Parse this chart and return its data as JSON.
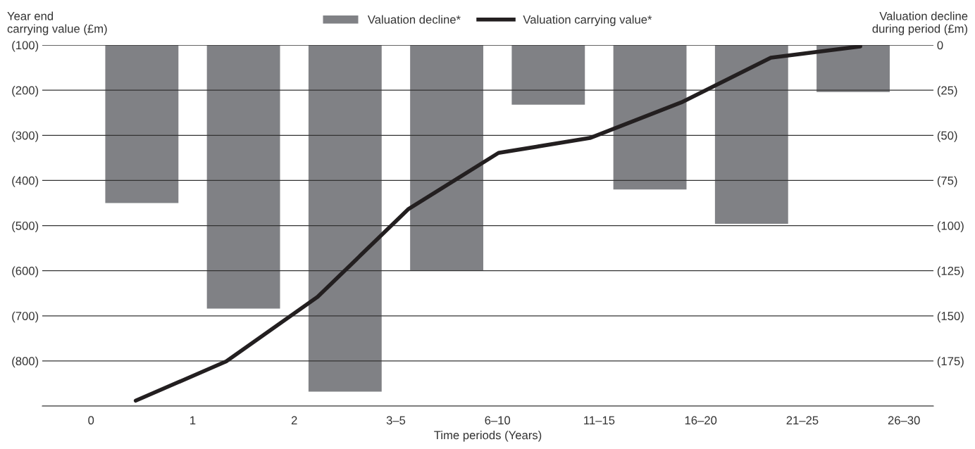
{
  "chart_data": {
    "type": "bar",
    "xlabel": "Time periods (Years)",
    "ylabel": "Year end\ncarrying value (£m)",
    "y2label": "Valuation decline\nduring period (£m)",
    "xlim": [
      -0.48,
      8.29
    ],
    "xticks": [
      {
        "value": 0,
        "label": "0"
      },
      {
        "value": 1,
        "label": "1"
      },
      {
        "value": 2,
        "label": "2"
      },
      {
        "value": 3,
        "label": "3–5"
      },
      {
        "value": 4,
        "label": "6–10"
      },
      {
        "value": 5,
        "label": "11–15"
      },
      {
        "value": 6,
        "label": "16–20"
      },
      {
        "value": 7,
        "label": "21–25"
      },
      {
        "value": 8,
        "label": "26–30"
      }
    ],
    "ylim": [
      -900,
      -100
    ],
    "yticks": [
      {
        "value": -100,
        "label": "(100)"
      },
      {
        "value": -200,
        "label": "(200)"
      },
      {
        "value": -300,
        "label": "(300)"
      },
      {
        "value": -400,
        "label": "(400)"
      },
      {
        "value": -500,
        "label": "(500)"
      },
      {
        "value": -600,
        "label": "(600)"
      },
      {
        "value": -700,
        "label": "(700)"
      },
      {
        "value": -800,
        "label": "(800)"
      },
      {
        "value": -900,
        "label": null
      }
    ],
    "y2lim": [
      -200,
      0
    ],
    "y2ticks": [
      {
        "value": 0,
        "label": "0"
      },
      {
        "value": -25,
        "label": "(25)"
      },
      {
        "value": -50,
        "label": "(50)"
      },
      {
        "value": -75,
        "label": "(75)"
      },
      {
        "value": -100,
        "label": "(100)"
      },
      {
        "value": -125,
        "label": "(125)"
      },
      {
        "value": -150,
        "label": "(150)"
      },
      {
        "value": -175,
        "label": "(175)"
      },
      {
        "value": -200,
        "label": null
      }
    ],
    "grid": "y",
    "legend": "top",
    "series": [
      {
        "name": "Valuation decline*",
        "axis": "y2",
        "color": "#808185",
        "x": [
          0.5,
          1.5,
          2.5,
          3.5,
          4.5,
          5.5,
          6.5,
          7.5
        ],
        "values": [
          -87.5,
          -146,
          -192,
          -125,
          -33,
          -80,
          -99,
          -26
        ]
      },
      {
        "name": "Valuation carrying value*",
        "type": "line",
        "color": "#231f20",
        "marker": "none",
        "line_style": "solid",
        "x": [
          0.44,
          1.33,
          2.23,
          3.12,
          4.01,
          4.91,
          5.81,
          6.69,
          7.57
        ],
        "values": [
          -888,
          -801,
          -658,
          -464,
          -339,
          -306,
          -227,
          -128,
          -103
        ]
      }
    ]
  }
}
